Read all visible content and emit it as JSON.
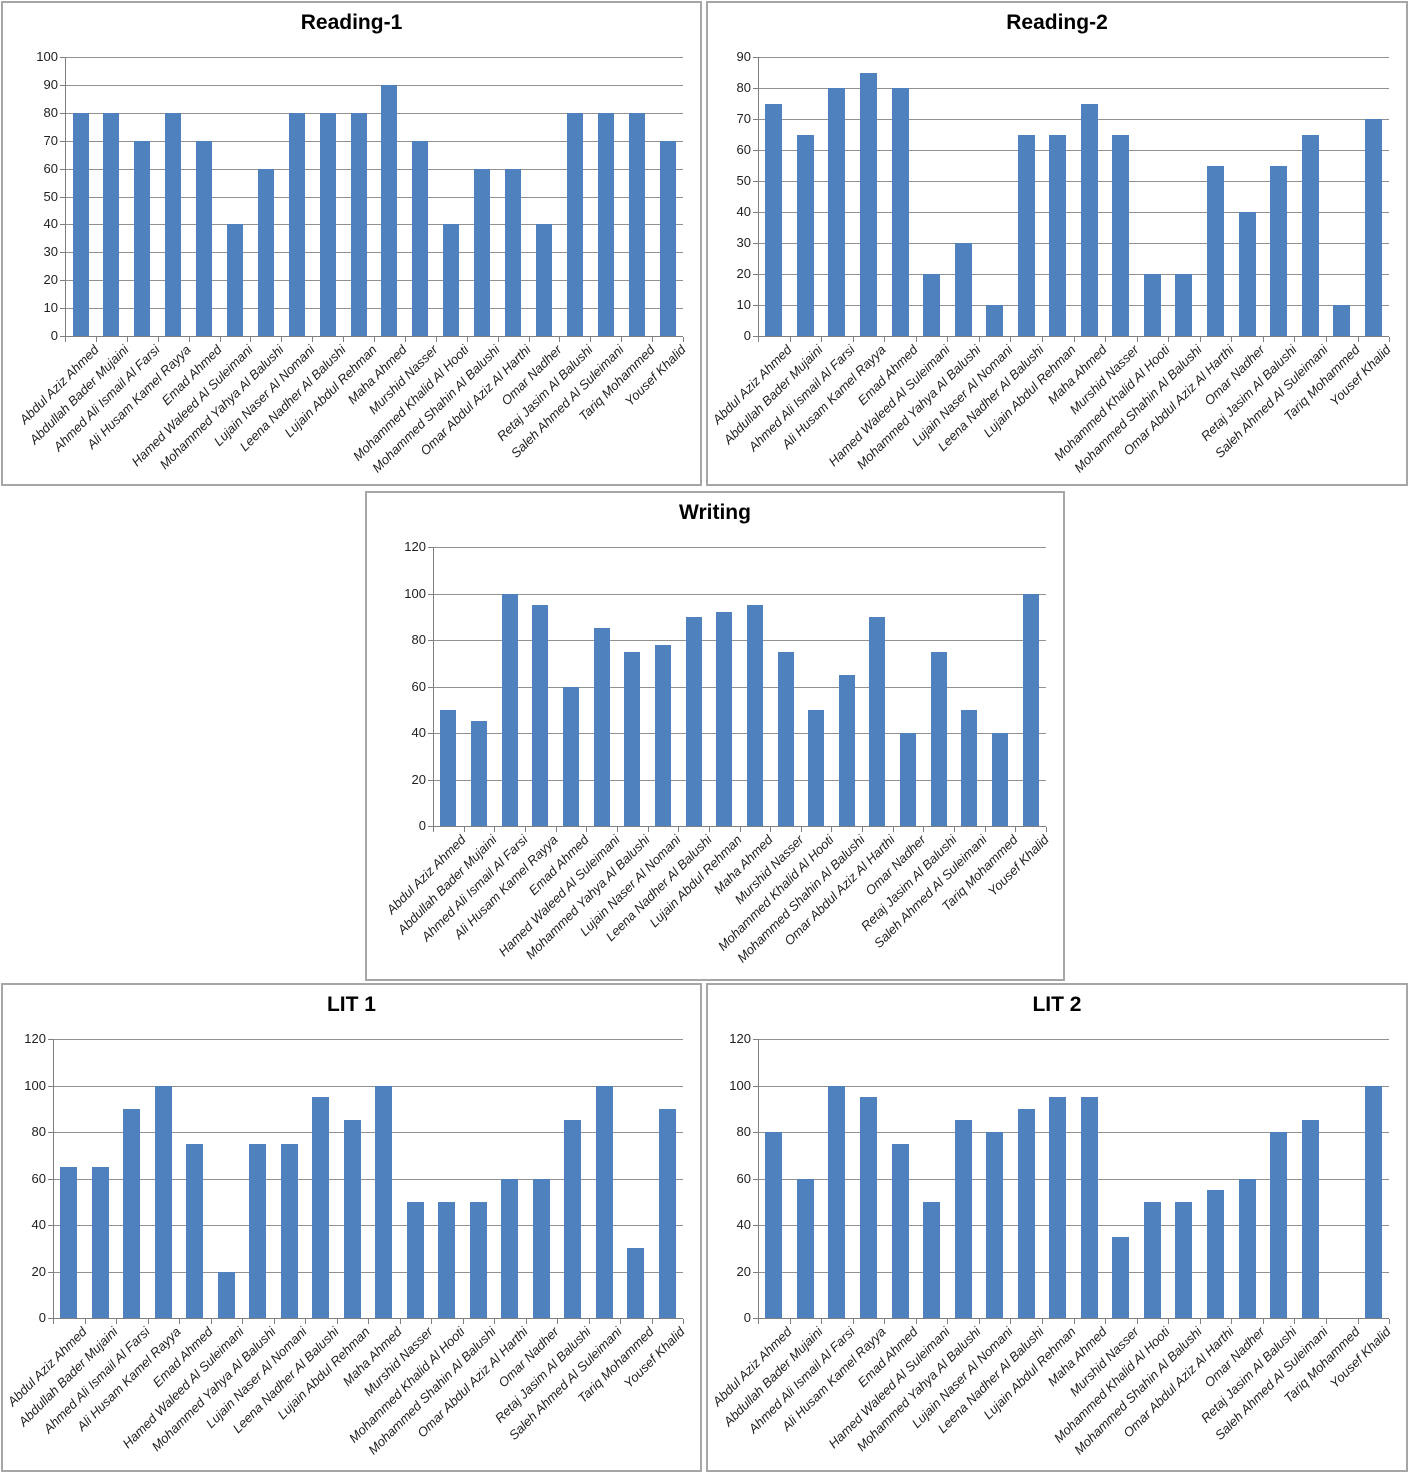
{
  "styles": {
    "bar_color": "#4e81bd",
    "grid_color": "#919191",
    "axis_color": "#7f7f7f",
    "box_border_color": "#a6a6a6",
    "text_color": "#1f1f1f",
    "title_color": "#000000",
    "background": "#ffffff"
  },
  "chart_data": [
    {
      "type": "bar",
      "title": "Reading-1",
      "xlabel": "",
      "ylabel": "",
      "ylim": [
        0,
        100
      ],
      "ytick_step": 10,
      "grid": true,
      "legend": "none",
      "bar_color": "#4e81bd",
      "categories": [
        "Abdul Aziz Ahmed",
        "Abdullah Bader Mujaini",
        "Ahmed Ali Ismail Al Farsi",
        "Ali Husam Kamel Rayya",
        "Emad Ahmed",
        "Hamed Waleed Al Suleimani",
        "Mohammed Yahya Al Balushi",
        "Lujain Naser Al Nomani",
        "Leena Nadher Al Balushi",
        "Lujain Abdul Rehman",
        "Maha Ahmed",
        "Murshid Nasser",
        "Mohammed Khalid Al Hooti",
        "Mohammed Shahin Al Balushi",
        "Omar Abdul Aziz Al Harthi",
        "Omar Nadher",
        "Retaj Jasim Al Balushi",
        "Saleh Ahmed Al Suleimani",
        "Tariq Mohammed",
        "Yousef Khalid"
      ],
      "values": [
        80,
        80,
        70,
        80,
        70,
        40,
        60,
        80,
        80,
        80,
        90,
        70,
        40,
        60,
        60,
        40,
        80,
        80,
        80,
        70
      ]
    },
    {
      "type": "bar",
      "title": "Reading-2",
      "xlabel": "",
      "ylabel": "",
      "ylim": [
        0,
        90
      ],
      "ytick_step": 10,
      "grid": true,
      "legend": "none",
      "bar_color": "#4e81bd",
      "categories": [
        "Abdul Aziz Ahmed",
        "Abdullah Bader Mujaini",
        "Ahmed Ali Ismail Al Farsi",
        "Ali Husam Kamel Rayya",
        "Emad Ahmed",
        "Hamed Waleed Al Suleimani",
        "Mohammed Yahya Al Balushi",
        "Lujain Naser Al Nomani",
        "Leena Nadher Al Balushi",
        "Lujain Abdul Rehman",
        "Maha Ahmed",
        "Murshid Nasser",
        "Mohammed Khalid Al Hooti",
        "Mohammed Shahin Al Balushi",
        "Omar Abdul Aziz Al Harthi",
        "Omar Nadher",
        "Retaj Jasim Al Balushi",
        "Saleh Ahmed Al Suleimani",
        "Tariq Mohammed",
        "Yousef Khalid"
      ],
      "values": [
        75,
        65,
        80,
        85,
        80,
        20,
        30,
        10,
        65,
        65,
        75,
        65,
        20,
        20,
        55,
        40,
        55,
        65,
        10,
        70
      ]
    },
    {
      "type": "bar",
      "title": "Writing",
      "xlabel": "",
      "ylabel": "",
      "ylim": [
        0,
        120
      ],
      "ytick_step": 20,
      "grid": true,
      "legend": "none",
      "bar_color": "#4e81bd",
      "categories": [
        "Abdul Aziz Ahmed",
        "Abdullah Bader Mujaini",
        "Ahmed Ali Ismail Al Farsi",
        "Ali Husam Kamel Rayya",
        "Emad Ahmed",
        "Hamed Waleed Al Suleimani",
        "Mohammed Yahya Al Balushi",
        "Lujain Naser Al Nomani",
        "Leena Nadher Al Balushi",
        "Lujain Abdul Rehman",
        "Maha Ahmed",
        "Murshid Nasser",
        "Mohammed Khalid Al Hooti",
        "Mohammed Shahin Al Balushi",
        "Omar Abdul Aziz Al Harthi",
        "Omar Nadher",
        "Retaj Jasim Al Balushi",
        "Saleh Ahmed Al Suleimani",
        "Tariq Mohammed",
        "Yousef Khalid"
      ],
      "values": [
        50,
        45,
        100,
        95,
        60,
        85,
        75,
        78,
        90,
        92,
        95,
        75,
        50,
        65,
        90,
        40,
        75,
        50,
        40,
        100
      ]
    },
    {
      "type": "bar",
      "title": "LIT 1",
      "xlabel": "",
      "ylabel": "",
      "ylim": [
        0,
        120
      ],
      "ytick_step": 20,
      "grid": true,
      "legend": "none",
      "bar_color": "#4e81bd",
      "categories": [
        "Abdul Aziz Ahmed",
        "Abdullah Bader Mujaini",
        "Ahmed Ali Ismail Al Farsi",
        "Ali Husam Kamel Rayya",
        "Emad Ahmed",
        "Hamed Waleed Al Suleimani",
        "Mohammed Yahya Al Balushi",
        "Lujain Naser Al Nomani",
        "Leena Nadher Al Balushi",
        "Lujain Abdul Rehman",
        "Maha Ahmed",
        "Murshid Nasser",
        "Mohammed Khalid Al Hooti",
        "Mohammed Shahin Al Balushi",
        "Omar Abdul Aziz Al Harthi",
        "Omar Nadher",
        "Retaj Jasim Al Balushi",
        "Saleh Ahmed Al Suleimani",
        "Tariq Mohammed",
        "Yousef Khalid"
      ],
      "values": [
        65,
        65,
        90,
        100,
        75,
        20,
        75,
        75,
        95,
        85,
        100,
        50,
        50,
        50,
        60,
        60,
        85,
        100,
        30,
        90
      ]
    },
    {
      "type": "bar",
      "title": "LIT 2",
      "xlabel": "",
      "ylabel": "",
      "ylim": [
        0,
        120
      ],
      "ytick_step": 20,
      "grid": true,
      "legend": "none",
      "bar_color": "#4e81bd",
      "categories": [
        "Abdul Aziz Ahmed",
        "Abdullah Bader Mujaini",
        "Ahmed Ali Ismail Al Farsi",
        "Ali Husam Kamel Rayya",
        "Emad Ahmed",
        "Hamed Waleed Al Suleimani",
        "Mohammed Yahya Al Balushi",
        "Lujain Naser Al Nomani",
        "Leena Nadher Al Balushi",
        "Lujain Abdul Rehman",
        "Maha Ahmed",
        "Murshid Nasser",
        "Mohammed Khalid Al Hooti",
        "Mohammed Shahin Al Balushi",
        "Omar Abdul Aziz Al Harthi",
        "Omar Nadher",
        "Retaj Jasim Al Balushi",
        "Saleh Ahmed Al Suleimani",
        "Tariq Mohammed",
        "Yousef Khalid"
      ],
      "values": [
        80,
        60,
        100,
        95,
        75,
        50,
        85,
        80,
        90,
        95,
        95,
        35,
        50,
        50,
        55,
        60,
        80,
        85,
        0,
        100
      ]
    }
  ]
}
